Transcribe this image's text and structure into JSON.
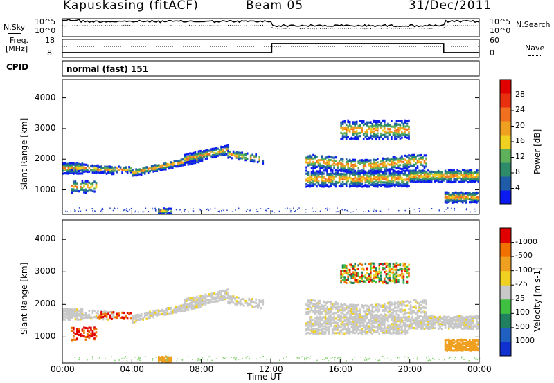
{
  "header": {
    "station": "Kapuskasing (fitACF)",
    "beam": "Beam 05",
    "date": "31/Dec/2011"
  },
  "noise_panel": {
    "left_label": "N.Sky",
    "left_ticks": [
      "10^5",
      "10^0"
    ],
    "right_label": "N.Search",
    "right_ticks": [
      "10^5",
      "10^0"
    ]
  },
  "freq_panel": {
    "left_label_1": "Freq.",
    "left_label_2": "[MHz]",
    "left_ticks": [
      "18",
      "8"
    ],
    "right_ticks": [
      "60",
      "0"
    ],
    "right_label": "Nave"
  },
  "cpid_panel": {
    "label": "CPID",
    "text": "normal (fast) 151"
  },
  "chart_data": [
    {
      "type": "heatmap",
      "name": "power",
      "ylabel": "Slant Range [km]",
      "ylim": [
        200,
        4600
      ],
      "yticks": [
        "1000",
        "2000",
        "3000",
        "4000"
      ],
      "xlim": [
        "00:00",
        "24:00"
      ],
      "colorbar": {
        "label": "Power [dB]",
        "ticks": [
          "4",
          "8",
          "12",
          "16",
          "20",
          "24",
          "28"
        ],
        "colors": [
          "#0a1af0",
          "#1e5ca8",
          "#2e8b6a",
          "#5fb05a",
          "#f0d020",
          "#f0a020",
          "#f07020",
          "#e83010",
          "#e00000"
        ]
      }
    },
    {
      "type": "heatmap",
      "name": "velocity",
      "ylabel": "Slant Range [km]",
      "ylim": [
        200,
        4600
      ],
      "yticks": [
        "1000",
        "2000",
        "3000",
        "4000"
      ],
      "xlabel": "Time UT",
      "xticks": [
        "00:00",
        "04:00",
        "08:00",
        "12:00",
        "16:00",
        "20:00",
        "00:00"
      ],
      "colorbar": {
        "label": "Velocity [m s-1]",
        "ticks": [
          "1000",
          "500",
          "100",
          "25",
          "-25",
          "-100",
          "-500",
          "-1000"
        ],
        "colors": [
          "#1030d0",
          "#2060c0",
          "#208060",
          "#40c040",
          "#c8c8c8",
          "#f0d020",
          "#f0a020",
          "#f07000",
          "#e00000"
        ]
      }
    }
  ],
  "ground_scatter_color": "#c8c8c8"
}
